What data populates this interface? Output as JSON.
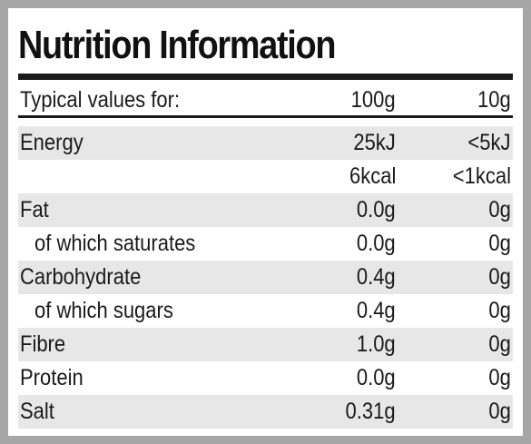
{
  "title": "Nutrition Information",
  "header": {
    "label": "Typical values for:",
    "col1": "100g",
    "col2": "10g"
  },
  "rows": [
    {
      "label": "Energy",
      "col1": "25kJ",
      "col2": "<5kJ"
    },
    {
      "label": "",
      "col1": "6kcal",
      "col2": "<1kcal"
    },
    {
      "label": "Fat",
      "col1": "0.0g",
      "col2": "0g"
    },
    {
      "label": "of which saturates",
      "col1": "0.0g",
      "col2": "0g"
    },
    {
      "label": "Carbohydrate",
      "col1": "0.4g",
      "col2": "0g"
    },
    {
      "label": "of which sugars",
      "col1": "0.4g",
      "col2": "0g"
    },
    {
      "label": "Fibre",
      "col1": "1.0g",
      "col2": "0g"
    },
    {
      "label": "Protein",
      "col1": "0.0g",
      "col2": "0g"
    },
    {
      "label": "Salt",
      "col1": "0.31g",
      "col2": "0g"
    }
  ],
  "colors": {
    "border": "#a6a6a6",
    "shade": "#e7e7e7",
    "rule": "#1a1a1a"
  }
}
